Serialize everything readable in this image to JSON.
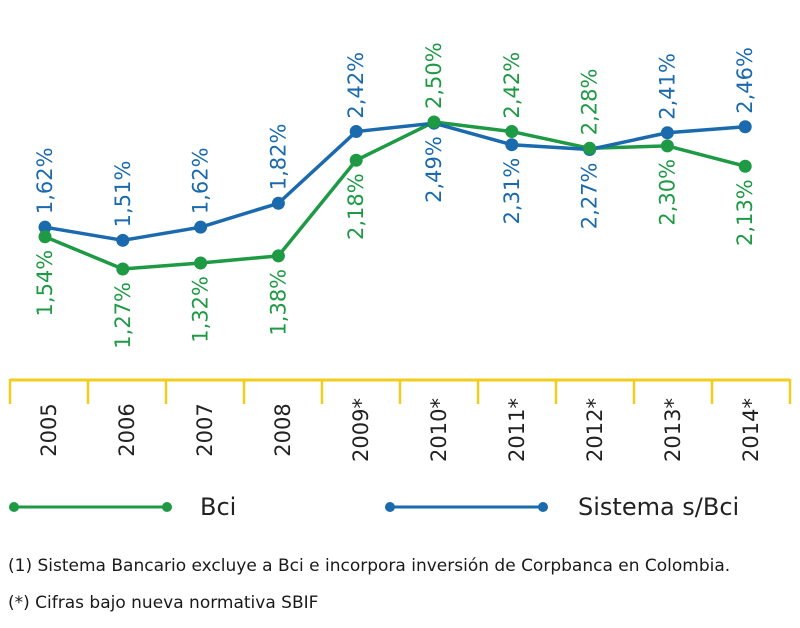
{
  "chart_data": {
    "type": "line",
    "categories": [
      "2005",
      "2006",
      "2007",
      "2008",
      "2009*",
      "2010*",
      "2011*",
      "2012*",
      "2013*",
      "2014*"
    ],
    "series": [
      {
        "name": "Bci",
        "values": [
          1.54,
          1.27,
          1.32,
          1.38,
          2.18,
          2.5,
          2.42,
          2.28,
          2.3,
          2.13
        ],
        "labels": [
          "1,54%",
          "1,27%",
          "1,32%",
          "1,38%",
          "2,18%",
          "2,50%",
          "2,42%",
          "2,28%",
          "2,30%",
          "2,13%"
        ],
        "color": "#1e9a45"
      },
      {
        "name": "Sistema s/Bci",
        "values": [
          1.62,
          1.51,
          1.62,
          1.82,
          2.42,
          2.49,
          2.31,
          2.27,
          2.41,
          2.46
        ],
        "labels": [
          "1,62%",
          "1,51%",
          "1,62%",
          "1,82%",
          "2,42%",
          "2,49%",
          "2,31%",
          "2,27%",
          "2,41%",
          "2,46%"
        ],
        "color": "#1a6aad"
      }
    ],
    "axis_color": "#f2cd1e",
    "legend_placement": "bottom",
    "grid": false
  },
  "footnotes": [
    "(1) Sistema Bancario excluye a Bci e incorpora inversión de Corpbanca en Colombia.",
    "(*) Cifras bajo nueva normativa SBIF"
  ]
}
